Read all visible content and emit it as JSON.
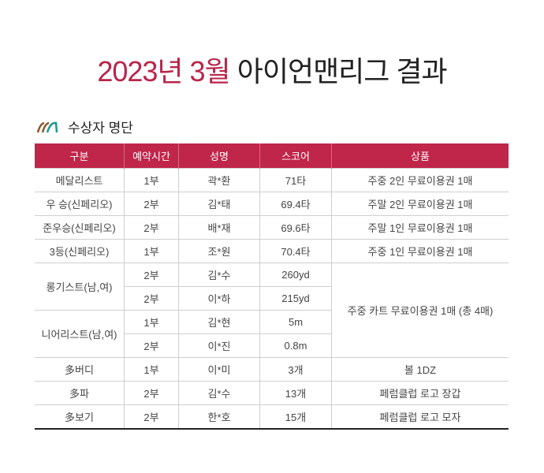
{
  "title": {
    "accent": "2023년 3월",
    "rest": "아이언맨리그 결과"
  },
  "section": {
    "label": "수상자 명단",
    "icon": "logo-arcs-icon"
  },
  "colors": {
    "accent": "#c0254a"
  },
  "table": {
    "headers": [
      "구분",
      "예약시간",
      "성명",
      "스코어",
      "상품"
    ],
    "rows": {
      "r0": [
        "메달리스트",
        "1부",
        "곽*환",
        "71타",
        "주중 2인 무료이용권 1매"
      ],
      "r1": [
        "우 승(신페리오)",
        "2부",
        "김*태",
        "69.4타",
        "주말 2인 무료이용권 1매"
      ],
      "r2": [
        "준우승(신페리오)",
        "2부",
        "배*재",
        "69.6타",
        "주말 1인 무료이용권 1매"
      ],
      "r3": [
        "3등(신페리오)",
        "1부",
        "조*원",
        "70.4타",
        "주중 1인 무료이용권 1매"
      ],
      "r4": [
        "롱기스트(남,여)",
        "2부",
        "김*수",
        "260yd",
        "주중 카트 무료이용권 1매 (총 4매)"
      ],
      "r5": [
        "",
        "2부",
        "이*하",
        "215yd"
      ],
      "r6": [
        "니어리스트(남,여)",
        "1부",
        "김*현",
        "5m"
      ],
      "r7": [
        "",
        "2부",
        "이*진",
        "0.8m"
      ],
      "r8": [
        "多버디",
        "1부",
        "이*미",
        "3개",
        "볼 1DZ"
      ],
      "r9": [
        "多파",
        "2부",
        "김*수",
        "13개",
        "페럼클럽 로고 장갑"
      ],
      "r10": [
        "多보기",
        "2부",
        "한*호",
        "15개",
        "페럼클럽 로고 모자"
      ]
    }
  }
}
